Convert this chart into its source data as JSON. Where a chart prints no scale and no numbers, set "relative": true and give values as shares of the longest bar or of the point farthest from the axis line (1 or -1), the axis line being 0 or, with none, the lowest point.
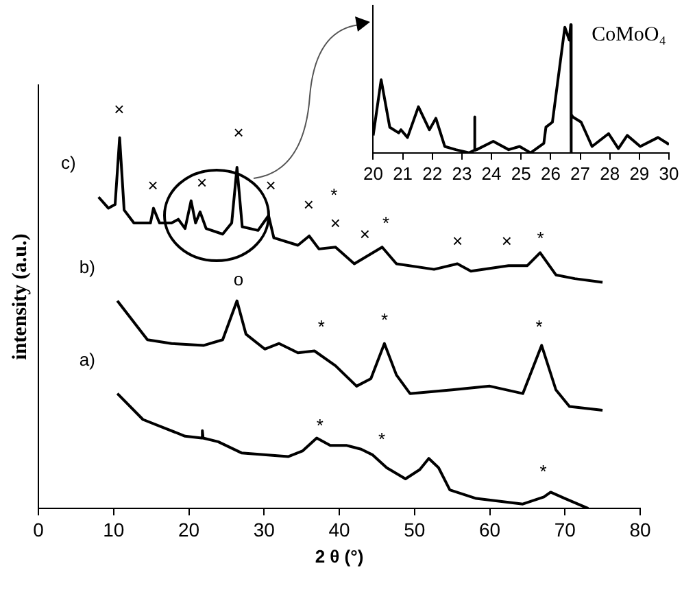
{
  "chart_data": [
    {
      "type": "line",
      "xlabel": "2 θ (°)",
      "ylabel": "intensity (a.u.)",
      "relative": true,
      "xlim": [
        0,
        80
      ],
      "xticks": [
        0,
        10,
        20,
        30,
        40,
        50,
        60,
        70,
        80
      ],
      "grid": false,
      "legend": false,
      "series": [
        {
          "name": "a)",
          "color": "#000000",
          "x": [
            10.5,
            13.9,
            16.4,
            19.5,
            21.7,
            21.8,
            21.9,
            23.9,
            27,
            33.2,
            35.1,
            37,
            38.8,
            41,
            42.9,
            44.4,
            46.3,
            48.8,
            50.7,
            51.9,
            53.2,
            54.7,
            58.2,
            64.4,
            67.2,
            68.1,
            70,
            73.1
          ],
          "values": [
            0.31,
            0.24,
            0.22,
            0.195,
            0.19,
            0.21,
            0.19,
            0.18,
            0.15,
            0.14,
            0.155,
            0.19,
            0.17,
            0.17,
            0.16,
            0.145,
            0.11,
            0.08,
            0.105,
            0.135,
            0.11,
            0.05,
            0.027,
            0.012,
            0.031,
            0.044,
            0.027,
            0
          ]
        },
        {
          "name": "b)",
          "color": "#000000",
          "x": [
            10.5,
            14.5,
            17.7,
            22,
            24.5,
            26.4,
            27.6,
            30.1,
            32,
            34.5,
            36.7,
            39.5,
            42.3,
            44.2,
            46,
            47.6,
            49.4,
            55,
            60,
            64.4,
            66.9,
            68.8,
            70.6,
            75
          ],
          "values": [
            0.56,
            0.455,
            0.445,
            0.44,
            0.455,
            0.56,
            0.47,
            0.43,
            0.445,
            0.42,
            0.425,
            0.385,
            0.33,
            0.35,
            0.445,
            0.36,
            0.31,
            0.32,
            0.33,
            0.31,
            0.44,
            0.32,
            0.275,
            0.265
          ]
        },
        {
          "name": "c)",
          "color": "#000000",
          "x": [
            8,
            9.3,
            10.2,
            10.8,
            11.4,
            12.7,
            14.9,
            15.3,
            16.1,
            17.7,
            18.6,
            19.5,
            20.3,
            20.9,
            21.5,
            22.3,
            24.5,
            25.7,
            26.4,
            27.1,
            29.2,
            30.6,
            31.3,
            34.5,
            36,
            37.3,
            39.5,
            42,
            45.7,
            47.6,
            52.6,
            55.7,
            57.5,
            62.5,
            65,
            66.7,
            68.8,
            71.3,
            75
          ],
          "values": [
            0.84,
            0.81,
            0.82,
            1.0,
            0.805,
            0.77,
            0.77,
            0.81,
            0.77,
            0.77,
            0.78,
            0.755,
            0.83,
            0.77,
            0.8,
            0.755,
            0.74,
            0.77,
            0.92,
            0.76,
            0.75,
            0.79,
            0.73,
            0.71,
            0.735,
            0.7,
            0.705,
            0.66,
            0.705,
            0.66,
            0.645,
            0.66,
            0.64,
            0.655,
            0.655,
            0.69,
            0.63,
            0.62,
            0.61
          ]
        }
      ],
      "annotations": [
        "×",
        "×",
        "×",
        "×",
        "×",
        "×",
        "*",
        "×",
        "×",
        "*",
        "×",
        "×",
        "*",
        "o",
        "*",
        "*",
        "*",
        "*",
        "*",
        "*"
      ]
    },
    {
      "type": "line",
      "relative": true,
      "xlim": [
        20,
        30
      ],
      "xticks": [
        20,
        21,
        22,
        23,
        24,
        25,
        26,
        27,
        28,
        29,
        30
      ],
      "grid": false,
      "legend": false,
      "annotations": [
        "CoMoO₄"
      ],
      "series": [
        {
          "color": "#000000",
          "x": [
            20,
            20.27,
            20.56,
            20.86,
            20.94,
            21.16,
            21.53,
            21.9,
            22.12,
            22.42,
            22.79,
            23.24,
            23.42,
            23.43,
            23.44,
            23.5,
            24.06,
            24.58,
            24.95,
            25.32,
            25.77,
            25.84,
            26.06,
            26.48,
            26.63,
            26.68,
            26.69,
            26.7,
            26.75,
            27.03,
            27.4,
            27.96,
            28.29,
            28.59,
            29.03,
            29.63,
            30
          ],
          "values": [
            0.136,
            0.57,
            0.2,
            0.156,
            0.18,
            0.12,
            0.36,
            0.18,
            0.27,
            0.05,
            0.025,
            0,
            0.02,
            0.28,
            0.02,
            0.025,
            0.09,
            0.025,
            0.05,
            0,
            0.075,
            0.2,
            0.24,
            0.98,
            0.88,
            1.0,
            0,
            0.3,
            0.28,
            0.24,
            0.05,
            0.15,
            0.033,
            0.136,
            0.05,
            0.12,
            0.066
          ]
        }
      ]
    }
  ]
}
